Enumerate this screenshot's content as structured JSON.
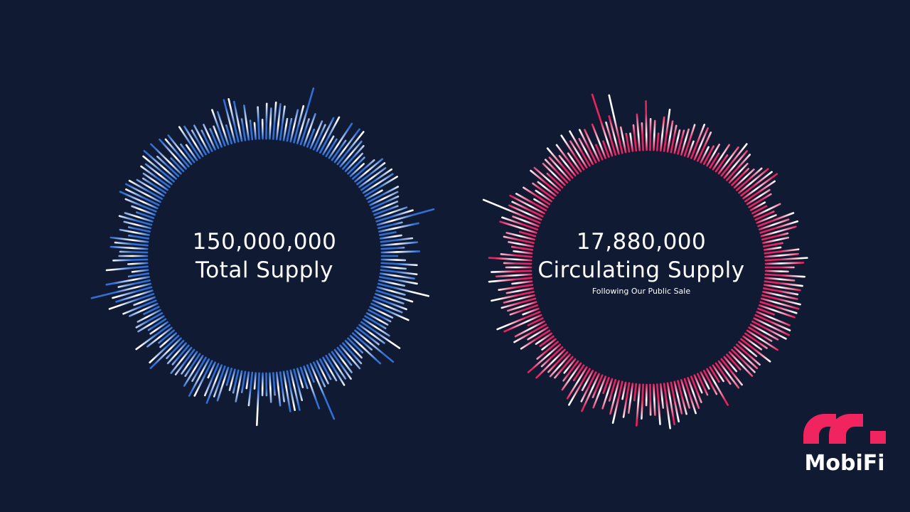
{
  "colors": {
    "background": "#111a33",
    "total_ring": "#2f6fd6",
    "circulating_ring": "#e8245e",
    "brand": "#f0245e",
    "text": "#ffffff"
  },
  "total": {
    "value": "150,000,000",
    "label": "Total Supply"
  },
  "circulating": {
    "value": "17,880,000",
    "label": "Circulating Supply",
    "note": "Following Our Public Sale"
  },
  "logo": {
    "wordmark": "MobiFi",
    "icon": "mobifi-m-mark-icon"
  }
}
